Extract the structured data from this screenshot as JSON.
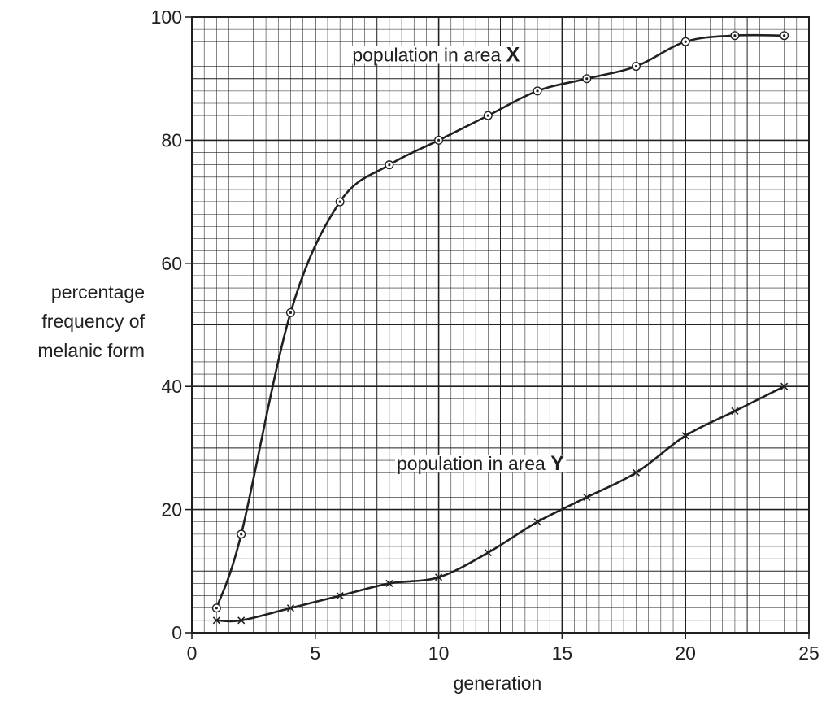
{
  "chart_data": {
    "type": "line",
    "xlabel": "generation",
    "ylabel": [
      "percentage",
      "frequency of",
      "melanic form"
    ],
    "xlim": [
      0,
      25
    ],
    "ylim": [
      0,
      100
    ],
    "x_ticks": [
      0,
      5,
      10,
      15,
      20,
      25
    ],
    "y_ticks": [
      0,
      20,
      40,
      60,
      80,
      100
    ],
    "grid": true,
    "series": [
      {
        "name": "population in area X",
        "label_text": "population in area ",
        "label_letter": "X",
        "marker": "circle-dot",
        "x": [
          1,
          2,
          4,
          6,
          8,
          10,
          12,
          14,
          16,
          18,
          20,
          22,
          24
        ],
        "y": [
          4,
          16,
          52,
          70,
          76,
          80,
          84,
          88,
          90,
          92,
          96,
          97,
          97
        ]
      },
      {
        "name": "population in area Y",
        "label_text": "population in area ",
        "label_letter": "Y",
        "marker": "cross",
        "x": [
          1,
          2,
          4,
          6,
          8,
          10,
          12,
          14,
          16,
          18,
          20,
          22,
          24
        ],
        "y": [
          2,
          2,
          4,
          6,
          8,
          9,
          13,
          18,
          22,
          26,
          32,
          36,
          40
        ]
      }
    ]
  }
}
